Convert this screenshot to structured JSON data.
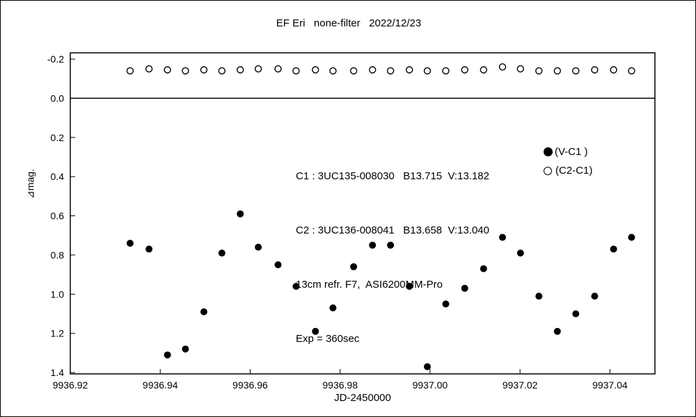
{
  "title": "EF Eri   none-filter   2022/12/23",
  "annotations": {
    "line1": "C1 : 3UC135-008030   B13.715  V:13.182",
    "line2": "C2 : 3UC136-008041   B13.658  V:13.040",
    "line3": "13cm refr. F7,  ASI6200MM-Pro",
    "line4": "Exp = 360sec"
  },
  "legend": {
    "filled_label": "(V-C1 )",
    "open_label": "(C2-C1)"
  },
  "colors": {
    "marker": "#000000",
    "axis": "#000000",
    "background": "#ffffff"
  },
  "chart_data": {
    "type": "scatter",
    "title": "EF Eri   none-filter   2022/12/23",
    "xlabel": "JD-2450000",
    "ylabel": "⊿mag.",
    "y_inverted": true,
    "xlim": [
      9936.92,
      9937.05
    ],
    "ylim_top": -0.232,
    "ylim_bottom": 1.407,
    "zero_line": 0.0,
    "grid": false,
    "legend_position": "inside-right",
    "x_ticks": [
      9936.92,
      9936.94,
      9936.96,
      9936.98,
      9937.0,
      9937.02,
      9937.04
    ],
    "x_tick_labels": [
      "9936.92",
      "9936.94",
      "9936.96",
      "9936.98",
      "9937.00",
      "9937.02",
      "9937.04"
    ],
    "y_ticks": [
      -0.2,
      0.0,
      0.2,
      0.4,
      0.6,
      0.8,
      1.0,
      1.2,
      1.4
    ],
    "y_tick_labels": [
      "-0.2",
      "0.0",
      "0.2",
      "0.4",
      "0.6",
      "0.8",
      "1.0",
      "1.2",
      "1.4"
    ],
    "x": [
      9936.9333,
      9936.9375,
      9936.9416,
      9936.9456,
      9936.9497,
      9936.9537,
      9936.9578,
      9936.9618,
      9936.9662,
      9936.9702,
      9936.9745,
      9936.9784,
      9936.983,
      9936.9872,
      9936.9912,
      9936.9954,
      9936.9994,
      9937.0035,
      9937.0077,
      9937.0119,
      9937.0161,
      9937.0201,
      9937.0242,
      9937.0283,
      9937.0324,
      9937.0366,
      9937.0408,
      9937.0448
    ],
    "series": [
      {
        "name": "V-C1",
        "marker": "filled-circle",
        "values": [
          0.74,
          0.77,
          1.31,
          1.28,
          1.09,
          0.79,
          0.59,
          0.76,
          0.85,
          0.96,
          1.19,
          1.07,
          0.86,
          0.75,
          0.75,
          0.96,
          1.37,
          1.05,
          0.97,
          0.87,
          0.71,
          0.79,
          1.01,
          1.19,
          1.1,
          1.01,
          0.77,
          0.71
        ]
      },
      {
        "name": "C2-C1",
        "marker": "open-circle",
        "values": [
          -0.14,
          -0.15,
          -0.145,
          -0.14,
          -0.145,
          -0.14,
          -0.145,
          -0.15,
          -0.15,
          -0.14,
          -0.145,
          -0.14,
          -0.14,
          -0.145,
          -0.14,
          -0.145,
          -0.14,
          -0.14,
          -0.145,
          -0.145,
          -0.16,
          -0.15,
          -0.14,
          -0.14,
          -0.14,
          -0.145,
          -0.145,
          -0.14
        ]
      }
    ]
  }
}
